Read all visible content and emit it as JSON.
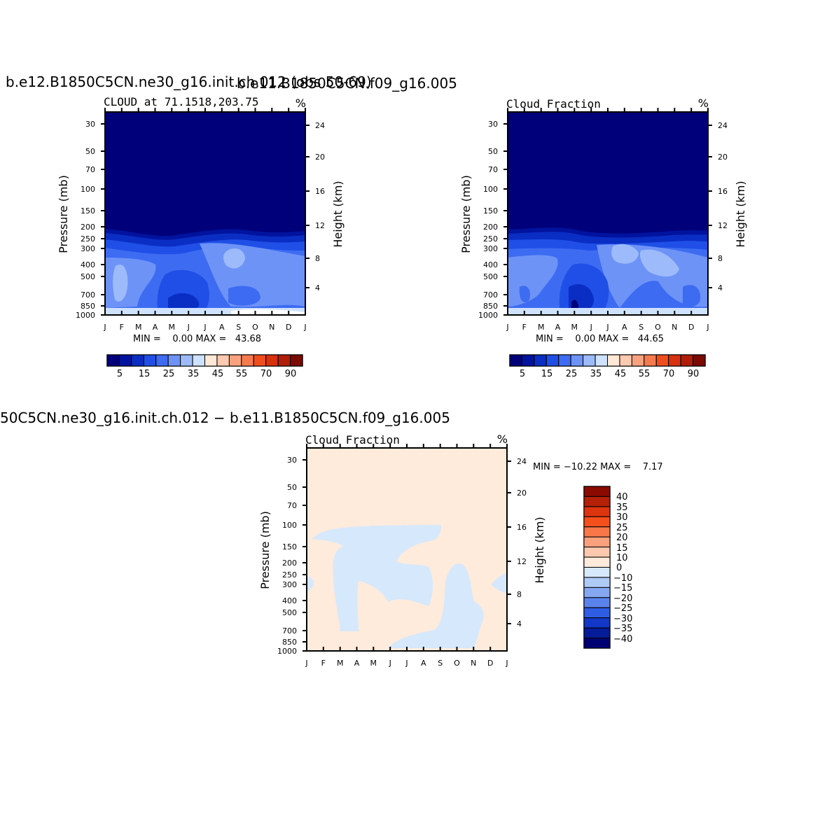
{
  "panels": [
    {
      "top_title": "b.e12.B1850C5CN.ne30_g16.init.ch.012 (obs 50-69)",
      "left_title": "CLOUD at 71.1518,203.75",
      "units": "%",
      "stats": "MIN =    0.00 MAX =   43.68",
      "colorbar_labels": [
        "5",
        "15",
        "25",
        "35",
        "45",
        "55",
        "70",
        "90"
      ]
    },
    {
      "top_title": "b.e11.B1850C5CN.f09_g16.005",
      "left_title": "Cloud Fraction",
      "units": "%",
      "stats": "MIN =    0.00 MAX =   44.65",
      "colorbar_labels": [
        "5",
        "15",
        "25",
        "35",
        "45",
        "55",
        "70",
        "90"
      ]
    },
    {
      "top_title": "50C5CN.ne30_g16.init.ch.012 − b.e11.B1850C5CN.f09_g16.005",
      "left_title": "Cloud Fraction",
      "units": "%",
      "stats": "MIN = −10.22 MAX =    7.17",
      "colorbar_labels": [
        "40",
        "35",
        "30",
        "25",
        "20",
        "15",
        "10",
        "0",
        "−10",
        "−15",
        "−20",
        "−25",
        "−30",
        "−35",
        "−40"
      ]
    }
  ],
  "colors": {
    "abs_scale": [
      "#00007a",
      "#00139e",
      "#0a2ec4",
      "#1f4fe6",
      "#3d6cf2",
      "#6e93f7",
      "#9dbbfa",
      "#cfe2fd",
      "#ffe8d6",
      "#fccab0",
      "#f9a27f",
      "#f57a4e",
      "#ef4e1c",
      "#d8310e",
      "#b01d08",
      "#7a0a02"
    ],
    "diff_scale_top_down": [
      "#8a0a02",
      "#b52009",
      "#dc3510",
      "#f5501c",
      "#f8784a",
      "#faa07c",
      "#fcc8ae",
      "#feebdc",
      "#d6e8fb",
      "#b0caf7",
      "#86a7f2",
      "#5a83ec",
      "#2f5ee4",
      "#1338c8",
      "#071c99",
      "#000073"
    ],
    "diff_positive_fill": "#feebdc",
    "diff_negative_fill": "#d6e8fb"
  },
  "chart_data": [
    {
      "type": "heatmap",
      "title": "CLOUD at 71.1518,203.75",
      "xlabel": "",
      "ylabel": "Pressure (mb)",
      "ylabel_right": "Height (km)",
      "x_ticks": [
        "J",
        "F",
        "M",
        "A",
        "M",
        "J",
        "J",
        "A",
        "S",
        "O",
        "N",
        "D",
        "J"
      ],
      "y_ticks": [
        30,
        50,
        70,
        100,
        150,
        200,
        250,
        300,
        400,
        500,
        700,
        850,
        1000
      ],
      "y_ticks_right": [
        24,
        20,
        16,
        12,
        8,
        4
      ],
      "ylim": [
        1000,
        30
      ],
      "log_scale": true,
      "legend": "bottom",
      "min": 0.0,
      "max": 43.68
    },
    {
      "type": "heatmap",
      "title": "Cloud Fraction",
      "xlabel": "",
      "ylabel": "Pressure (mb)",
      "ylabel_right": "Height (km)",
      "x_ticks": [
        "J",
        "F",
        "M",
        "A",
        "M",
        "J",
        "J",
        "A",
        "S",
        "O",
        "N",
        "D",
        "J"
      ],
      "y_ticks": [
        30,
        50,
        70,
        100,
        150,
        200,
        250,
        300,
        400,
        500,
        700,
        850,
        1000
      ],
      "y_ticks_right": [
        24,
        20,
        16,
        12,
        8,
        4
      ],
      "ylim": [
        1000,
        30
      ],
      "log_scale": true,
      "legend": "bottom",
      "min": 0.0,
      "max": 44.65
    },
    {
      "type": "heatmap",
      "title": "Cloud Fraction",
      "xlabel": "",
      "ylabel": "Pressure (mb)",
      "ylabel_right": "Height (km)",
      "x_ticks": [
        "J",
        "F",
        "M",
        "A",
        "M",
        "J",
        "J",
        "A",
        "S",
        "O",
        "N",
        "D",
        "J"
      ],
      "y_ticks": [
        30,
        50,
        70,
        100,
        150,
        200,
        250,
        300,
        400,
        500,
        700,
        850,
        1000
      ],
      "y_ticks_right": [
        24,
        20,
        16,
        12,
        8,
        4
      ],
      "ylim": [
        1000,
        30
      ],
      "log_scale": true,
      "legend": "right",
      "min": -10.22,
      "max": 7.17
    }
  ]
}
